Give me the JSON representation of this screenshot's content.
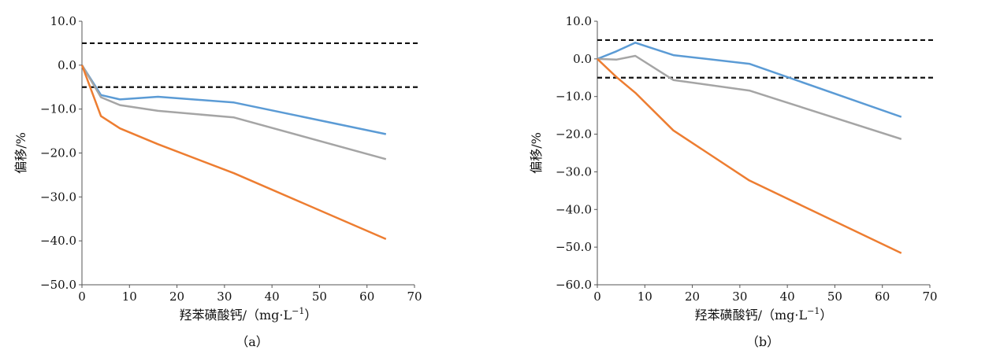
{
  "chart_data": [
    {
      "type": "line",
      "caption": "（a）",
      "xlabel": "羟苯磺酸钙/（mg·L",
      "xlabel_sup": "−1",
      "xlabel_end": "）",
      "ylabel": "偏移/%",
      "xlim": [
        0,
        70
      ],
      "ylim": [
        -50,
        10
      ],
      "xticks": [
        "0",
        "10",
        "20",
        "30",
        "40",
        "50",
        "60",
        "70"
      ],
      "yticks": [
        "10.0",
        "0.0",
        "−10.0",
        "−20.0",
        "−30.0",
        "−40.0",
        "−50.0"
      ],
      "reference_lines": [
        5,
        -5
      ],
      "series": [
        {
          "color": "#5b9bd5",
          "x": [
            0,
            4,
            8,
            16,
            32,
            64
          ],
          "y": [
            0,
            -6.8,
            -7.8,
            -7.2,
            -8.5,
            -15.7
          ]
        },
        {
          "color": "#a5a5a5",
          "x": [
            0,
            4,
            8,
            16,
            32,
            64
          ],
          "y": [
            0,
            -7.3,
            -9.1,
            -10.4,
            -11.9,
            -21.4
          ]
        },
        {
          "color": "#ed7d31",
          "x": [
            0,
            4,
            8,
            16,
            32,
            64
          ],
          "y": [
            0,
            -11.6,
            -14.4,
            -18.0,
            -24.6,
            -39.6
          ]
        }
      ]
    },
    {
      "type": "line",
      "caption": "（b）",
      "xlabel": "羟苯磺酸钙/（mg·L",
      "xlabel_sup": "−1",
      "xlabel_end": "）",
      "ylabel": "偏移/%",
      "xlim": [
        0,
        70
      ],
      "ylim": [
        -60,
        10
      ],
      "xticks": [
        "0",
        "10",
        "20",
        "30",
        "40",
        "50",
        "60",
        "70"
      ],
      "yticks": [
        "10.0",
        "0.0",
        "−10.0",
        "−20.0",
        "−30.0",
        "−40.0",
        "−50.0",
        "−60.0"
      ],
      "reference_lines": [
        5,
        -5
      ],
      "series": [
        {
          "color": "#5b9bd5",
          "x": [
            0,
            4,
            8,
            16,
            32,
            64
          ],
          "y": [
            0,
            2.0,
            4.3,
            1.0,
            -1.3,
            -15.4
          ]
        },
        {
          "color": "#a5a5a5",
          "x": [
            0,
            4,
            8,
            16,
            32,
            64
          ],
          "y": [
            0,
            -0.2,
            0.8,
            -5.6,
            -8.4,
            -21.3
          ]
        },
        {
          "color": "#ed7d31",
          "x": [
            0,
            4,
            8,
            16,
            32,
            64
          ],
          "y": [
            0,
            -4.8,
            -9.0,
            -19.0,
            -32.3,
            -51.6
          ]
        }
      ]
    }
  ]
}
